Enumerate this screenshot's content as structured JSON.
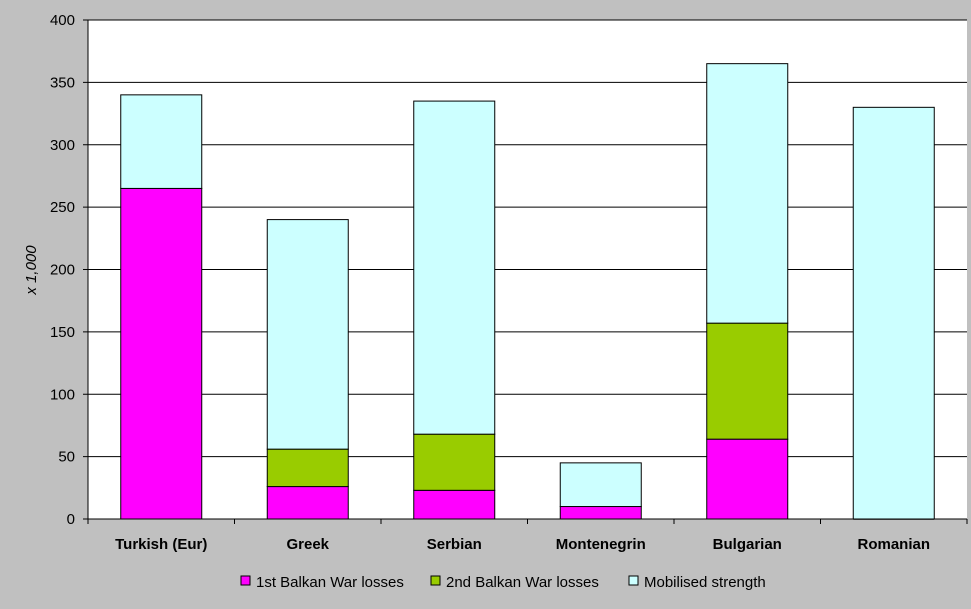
{
  "chart_data": {
    "type": "bar",
    "stacked": true,
    "title": "",
    "xlabel": "",
    "ylabel": "x 1,000",
    "ylim": [
      0,
      400
    ],
    "yticks": [
      0,
      50,
      100,
      150,
      200,
      250,
      300,
      350,
      400
    ],
    "grid": true,
    "legend_position": "bottom",
    "categories": [
      "Turkish (Eur)",
      "Greek",
      "Serbian",
      "Montenegrin",
      "Bulgarian",
      "Romanian"
    ],
    "series": [
      {
        "name": "1st Balkan War losses",
        "color": "#ff00ff",
        "values": [
          265,
          26,
          23,
          10,
          64,
          0
        ]
      },
      {
        "name": "2nd Balkan War losses",
        "color": "#99cc00",
        "values": [
          0,
          30,
          45,
          0,
          93,
          0
        ]
      },
      {
        "name": "Mobilised strength",
        "color": "#ccffff",
        "values": [
          75,
          184,
          267,
          35,
          208,
          330
        ]
      }
    ]
  }
}
